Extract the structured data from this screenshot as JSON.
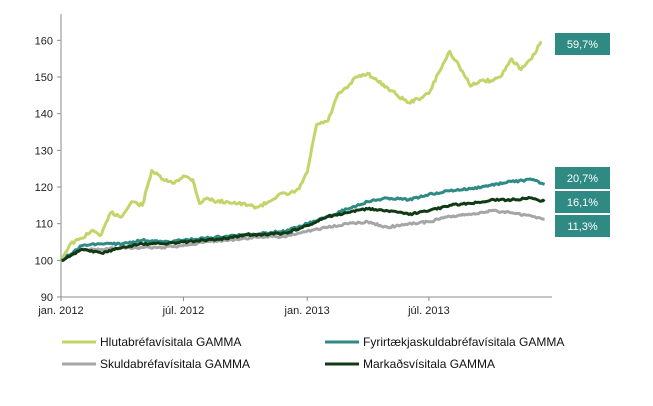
{
  "chart_data": {
    "type": "line",
    "title": "",
    "xlabel": "",
    "ylabel": "",
    "ylim": [
      90,
      165
    ],
    "yticks": [
      90,
      100,
      110,
      120,
      130,
      140,
      150,
      160
    ],
    "xticks": [
      {
        "x": "2012-01-01",
        "label": "jan. 2012"
      },
      {
        "x": "2012-07-01",
        "label": "júl. 2012"
      },
      {
        "x": "2013-01-01",
        "label": "jan. 2013"
      },
      {
        "x": "2013-07-01",
        "label": "júl. 2013"
      }
    ],
    "xlim": [
      "2012-01-01",
      "2013-12-31"
    ],
    "grid": false,
    "legend_placement": "bottom",
    "series": [
      {
        "name": "Hlutabréfavísitala GAMMA",
        "color": "#c5d46a",
        "end_label": "59,7%",
        "points": [
          [
            "2012-01-02",
            100.5
          ],
          [
            "2012-01-15",
            104.5
          ],
          [
            "2012-02-01",
            106
          ],
          [
            "2012-02-15",
            108
          ],
          [
            "2012-03-01",
            107
          ],
          [
            "2012-03-15",
            113
          ],
          [
            "2012-04-01",
            112
          ],
          [
            "2012-04-15",
            116
          ],
          [
            "2012-05-01",
            115
          ],
          [
            "2012-05-15",
            124.5
          ],
          [
            "2012-06-01",
            122
          ],
          [
            "2012-06-15",
            121
          ],
          [
            "2012-07-01",
            123
          ],
          [
            "2012-07-15",
            122
          ],
          [
            "2012-07-25",
            115.5
          ],
          [
            "2012-08-05",
            117
          ],
          [
            "2012-08-20",
            116
          ],
          [
            "2012-09-05",
            116
          ],
          [
            "2012-09-20",
            115.5
          ],
          [
            "2012-10-05",
            115
          ],
          [
            "2012-10-20",
            114.5
          ],
          [
            "2012-11-05",
            116
          ],
          [
            "2012-11-20",
            118
          ],
          [
            "2012-12-05",
            118
          ],
          [
            "2012-12-20",
            119.5
          ],
          [
            "2013-01-01",
            124
          ],
          [
            "2013-01-15",
            137
          ],
          [
            "2013-02-01",
            138
          ],
          [
            "2013-02-15",
            145
          ],
          [
            "2013-03-01",
            147
          ],
          [
            "2013-03-15",
            150
          ],
          [
            "2013-04-01",
            151
          ],
          [
            "2013-04-15",
            149
          ],
          [
            "2013-05-01",
            147
          ],
          [
            "2013-05-15",
            145
          ],
          [
            "2013-06-01",
            143
          ],
          [
            "2013-06-15",
            144
          ],
          [
            "2013-07-01",
            145.5
          ],
          [
            "2013-07-15",
            151
          ],
          [
            "2013-08-01",
            157
          ],
          [
            "2013-08-15",
            153
          ],
          [
            "2013-09-01",
            147.5
          ],
          [
            "2013-09-15",
            149
          ],
          [
            "2013-10-01",
            149
          ],
          [
            "2013-10-15",
            150
          ],
          [
            "2013-11-01",
            155
          ],
          [
            "2013-11-15",
            152
          ],
          [
            "2013-12-01",
            155
          ],
          [
            "2013-12-15",
            159.7
          ]
        ]
      },
      {
        "name": "Fyrirtækjaskuldabréfavísitala GAMMA",
        "color": "#2e8a83",
        "end_label": "20,7%",
        "points": [
          [
            "2012-01-02",
            100
          ],
          [
            "2012-02-01",
            104
          ],
          [
            "2012-03-01",
            104.5
          ],
          [
            "2012-04-01",
            104.5
          ],
          [
            "2012-05-01",
            105.5
          ],
          [
            "2012-06-01",
            105
          ],
          [
            "2012-07-01",
            105.5
          ],
          [
            "2012-08-01",
            106
          ],
          [
            "2012-09-01",
            106.5
          ],
          [
            "2012-10-01",
            107
          ],
          [
            "2012-11-01",
            107.5
          ],
          [
            "2012-12-01",
            108
          ],
          [
            "2013-01-01",
            110
          ],
          [
            "2013-02-01",
            112
          ],
          [
            "2013-03-01",
            114
          ],
          [
            "2013-04-01",
            116
          ],
          [
            "2013-05-01",
            117
          ],
          [
            "2013-06-01",
            116.5
          ],
          [
            "2013-07-01",
            118
          ],
          [
            "2013-08-01",
            119
          ],
          [
            "2013-09-01",
            119.5
          ],
          [
            "2013-10-01",
            120.5
          ],
          [
            "2013-11-01",
            121.5
          ],
          [
            "2013-12-01",
            122
          ],
          [
            "2013-12-20",
            120.7
          ]
        ]
      },
      {
        "name": "Skuldabréfavísitala GAMMA",
        "color": "#a6a6a6",
        "end_label": "11,3%",
        "points": [
          [
            "2012-01-02",
            100
          ],
          [
            "2012-02-01",
            103
          ],
          [
            "2012-03-01",
            103
          ],
          [
            "2012-04-01",
            103.5
          ],
          [
            "2012-05-01",
            103.5
          ],
          [
            "2012-06-01",
            103.5
          ],
          [
            "2012-07-01",
            104
          ],
          [
            "2012-08-01",
            105
          ],
          [
            "2012-09-01",
            105.5
          ],
          [
            "2012-10-01",
            106
          ],
          [
            "2012-11-01",
            106.5
          ],
          [
            "2012-12-01",
            106.5
          ],
          [
            "2013-01-01",
            108
          ],
          [
            "2013-02-01",
            109
          ],
          [
            "2013-03-01",
            110
          ],
          [
            "2013-04-01",
            110.5
          ],
          [
            "2013-05-01",
            109
          ],
          [
            "2013-06-01",
            110
          ],
          [
            "2013-07-01",
            110.5
          ],
          [
            "2013-08-01",
            112
          ],
          [
            "2013-09-01",
            112.5
          ],
          [
            "2013-10-01",
            113.5
          ],
          [
            "2013-11-01",
            113
          ],
          [
            "2013-12-01",
            112
          ],
          [
            "2013-12-20",
            111.3
          ]
        ]
      },
      {
        "name": "Markaðsvísitala GAMMA",
        "color": "#0f3a14",
        "end_label": "16,1%",
        "points": [
          [
            "2012-01-02",
            100
          ],
          [
            "2012-02-01",
            103
          ],
          [
            "2012-03-01",
            102
          ],
          [
            "2012-04-01",
            103.5
          ],
          [
            "2012-05-01",
            104.5
          ],
          [
            "2012-06-01",
            104.5
          ],
          [
            "2012-07-01",
            105
          ],
          [
            "2012-08-01",
            105.5
          ],
          [
            "2012-09-01",
            106
          ],
          [
            "2012-10-01",
            107
          ],
          [
            "2012-11-01",
            107
          ],
          [
            "2012-12-01",
            107.5
          ],
          [
            "2013-01-01",
            109.5
          ],
          [
            "2013-02-01",
            112
          ],
          [
            "2013-03-01",
            113
          ],
          [
            "2013-04-01",
            114
          ],
          [
            "2013-05-01",
            113.5
          ],
          [
            "2013-06-01",
            112.5
          ],
          [
            "2013-07-01",
            113.5
          ],
          [
            "2013-08-01",
            115
          ],
          [
            "2013-09-01",
            115.5
          ],
          [
            "2013-10-01",
            116.5
          ],
          [
            "2013-11-01",
            116.5
          ],
          [
            "2013-12-01",
            117
          ],
          [
            "2013-12-20",
            116.1
          ]
        ]
      }
    ]
  }
}
